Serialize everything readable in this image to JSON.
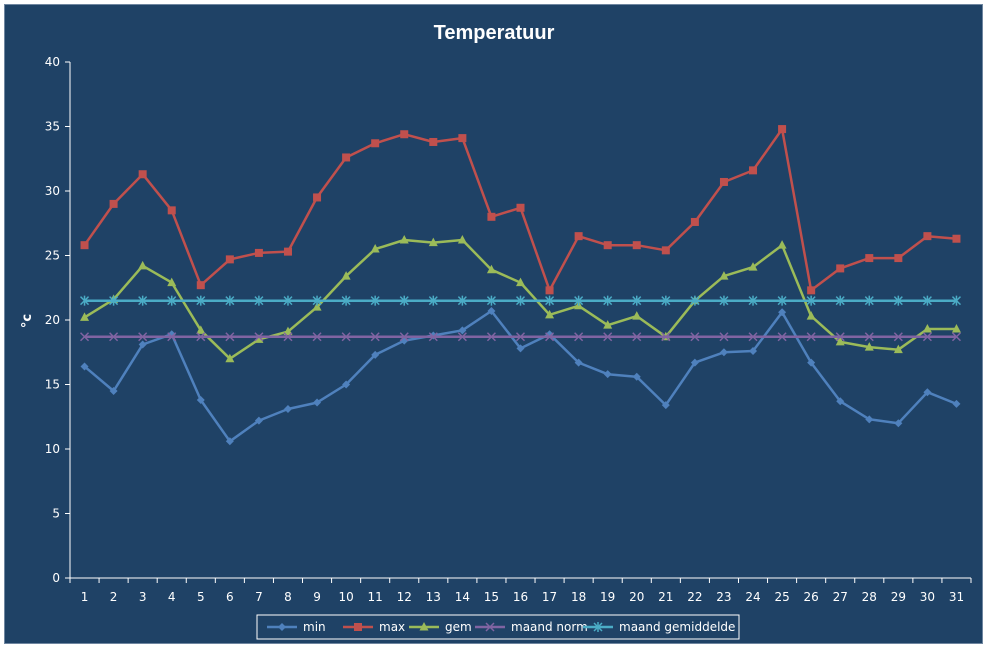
{
  "chart_data": {
    "type": "line",
    "title": "Temperatuur",
    "xlabel": "",
    "ylabel": "°c",
    "ylim": [
      0,
      40
    ],
    "yticks": [
      "0",
      "5",
      "10",
      "15",
      "20",
      "25",
      "30",
      "35",
      "40"
    ],
    "categories": [
      "1",
      "2",
      "3",
      "4",
      "5",
      "6",
      "7",
      "8",
      "9",
      "10",
      "11",
      "12",
      "13",
      "14",
      "15",
      "16",
      "17",
      "18",
      "19",
      "20",
      "21",
      "22",
      "23",
      "24",
      "25",
      "26",
      "27",
      "28",
      "29",
      "30",
      "31"
    ],
    "grid": false,
    "legend_position": "bottom",
    "series": [
      {
        "name": "min",
        "color": "#4f81bd",
        "marker": "diamond",
        "values": [
          16.4,
          14.5,
          18.1,
          18.9,
          13.8,
          10.6,
          12.2,
          13.1,
          13.6,
          15.0,
          17.3,
          18.4,
          18.8,
          19.2,
          20.7,
          17.8,
          18.9,
          16.7,
          15.8,
          15.6,
          13.4,
          16.7,
          17.5,
          17.6,
          20.6,
          16.7,
          13.7,
          12.3,
          12.0,
          14.4,
          13.5
        ]
      },
      {
        "name": "max",
        "color": "#c0504d",
        "marker": "square",
        "values": [
          25.8,
          29.0,
          31.3,
          28.5,
          22.7,
          24.7,
          25.2,
          25.3,
          29.5,
          32.6,
          33.7,
          34.4,
          33.8,
          34.1,
          28.0,
          28.7,
          22.3,
          26.5,
          25.8,
          25.8,
          25.4,
          27.6,
          30.7,
          31.6,
          34.8,
          22.3,
          24.0,
          24.8,
          24.8,
          26.5,
          26.3
        ]
      },
      {
        "name": "gem",
        "color": "#9bbb59",
        "marker": "triangle",
        "values": [
          20.2,
          21.6,
          24.2,
          22.9,
          19.2,
          17.0,
          18.5,
          19.1,
          21.0,
          23.4,
          25.5,
          26.2,
          26.0,
          26.2,
          23.9,
          22.9,
          20.4,
          21.1,
          19.6,
          20.3,
          18.7,
          21.5,
          23.4,
          24.1,
          25.8,
          20.3,
          18.3,
          17.9,
          17.7,
          19.3,
          19.3
        ]
      },
      {
        "name": "maand norm",
        "color": "#8064a2",
        "marker": "x",
        "values": [
          18.7,
          18.7,
          18.7,
          18.7,
          18.7,
          18.7,
          18.7,
          18.7,
          18.7,
          18.7,
          18.7,
          18.7,
          18.7,
          18.7,
          18.7,
          18.7,
          18.7,
          18.7,
          18.7,
          18.7,
          18.7,
          18.7,
          18.7,
          18.7,
          18.7,
          18.7,
          18.7,
          18.7,
          18.7,
          18.7,
          18.7
        ]
      },
      {
        "name": "maand gemiddelde",
        "color": "#4bacc6",
        "marker": "star",
        "values": [
          21.5,
          21.5,
          21.5,
          21.5,
          21.5,
          21.5,
          21.5,
          21.5,
          21.5,
          21.5,
          21.5,
          21.5,
          21.5,
          21.5,
          21.5,
          21.5,
          21.5,
          21.5,
          21.5,
          21.5,
          21.5,
          21.5,
          21.5,
          21.5,
          21.5,
          21.5,
          21.5,
          21.5,
          21.5,
          21.5,
          21.5
        ]
      }
    ]
  },
  "colors": {
    "background": "#1f4266",
    "axis": "#ffffff",
    "text": "#ffffff"
  }
}
